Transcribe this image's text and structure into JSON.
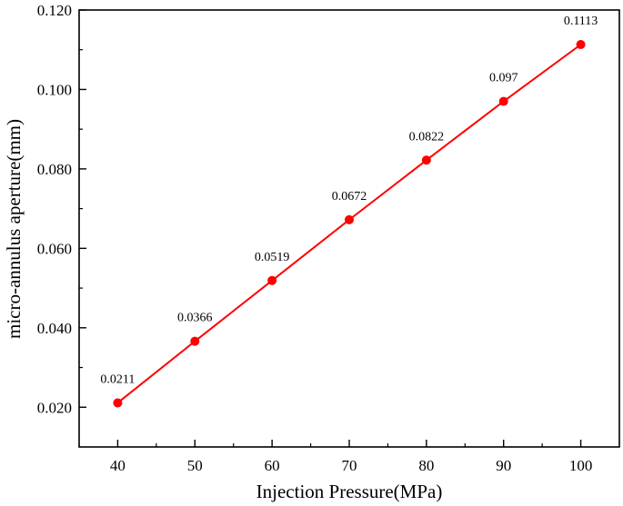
{
  "chart_data": {
    "type": "line",
    "title": "",
    "xlabel": "Injection Pressure(MPa)",
    "ylabel": "micro-annulus aperture(mm)",
    "xlim": [
      35,
      105
    ],
    "ylim": [
      0.01,
      0.12
    ],
    "x_ticks": [
      40,
      50,
      60,
      70,
      80,
      90,
      100
    ],
    "x_tick_labels": [
      "40",
      "50",
      "60",
      "70",
      "80",
      "90",
      "100"
    ],
    "y_ticks": [
      0.02,
      0.04,
      0.06,
      0.08,
      0.1,
      0.12
    ],
    "y_tick_labels": [
      "0.020",
      "0.040",
      "0.060",
      "0.080",
      "0.100",
      "0.120"
    ],
    "grid": false,
    "series": [
      {
        "name": "micro-annulus aperture",
        "color": "#ff0000",
        "x": [
          40,
          50,
          60,
          70,
          80,
          90,
          100
        ],
        "values": [
          0.0211,
          0.0366,
          0.0519,
          0.0672,
          0.0822,
          0.097,
          0.1113
        ],
        "labels": [
          "0.0211",
          "0.0366",
          "0.0519",
          "0.0672",
          "0.0822",
          "0.097",
          "0.1113"
        ]
      }
    ]
  }
}
